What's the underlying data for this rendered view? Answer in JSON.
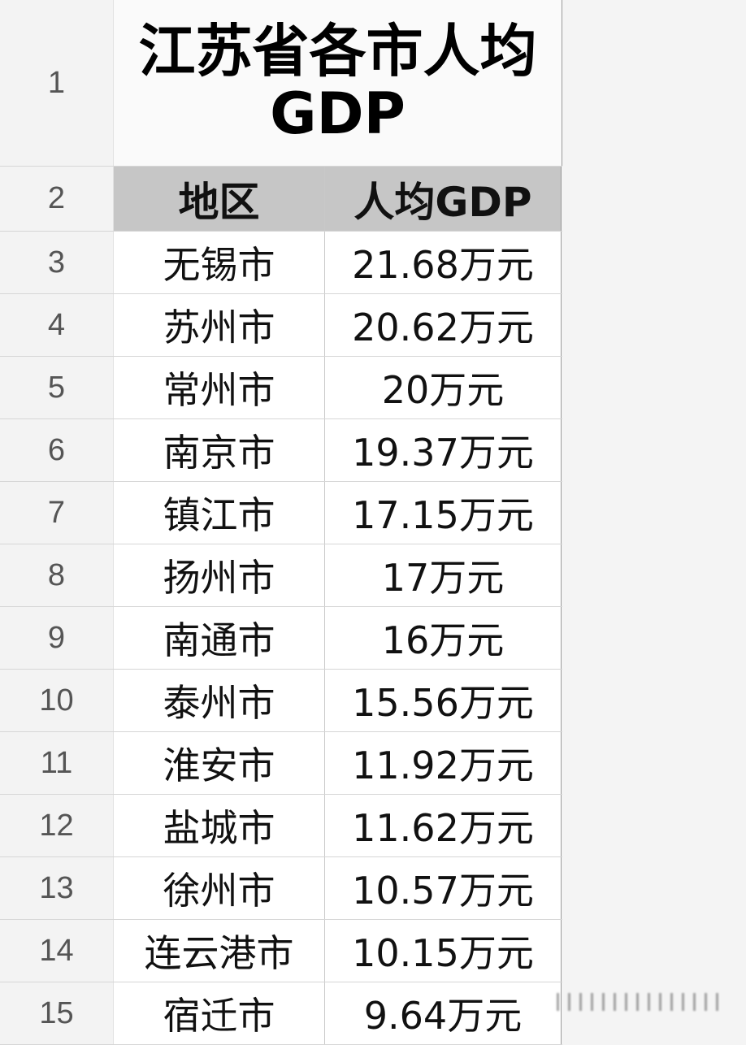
{
  "title": "江苏省各市人均GDP",
  "row_numbers": [
    "1",
    "2",
    "3",
    "4",
    "5",
    "6",
    "7",
    "8",
    "9",
    "10",
    "11",
    "12",
    "13",
    "14",
    "15"
  ],
  "headers": {
    "region": "地区",
    "gdp": "人均GDP"
  },
  "rows": [
    {
      "city": "无锡市",
      "gdp": "21.68万元"
    },
    {
      "city": "苏州市",
      "gdp": "20.62万元"
    },
    {
      "city": "常州市",
      "gdp": "20万元"
    },
    {
      "city": "南京市",
      "gdp": "19.37万元"
    },
    {
      "city": "镇江市",
      "gdp": "17.15万元"
    },
    {
      "city": "扬州市",
      "gdp": "17万元"
    },
    {
      "city": "南通市",
      "gdp": "16万元"
    },
    {
      "city": "泰州市",
      "gdp": "15.56万元"
    },
    {
      "city": "淮安市",
      "gdp": "11.92万元"
    },
    {
      "city": "盐城市",
      "gdp": "11.62万元"
    },
    {
      "city": "徐州市",
      "gdp": "10.57万元"
    },
    {
      "city": "连云港市",
      "gdp": "10.15万元"
    },
    {
      "city": "宿迁市",
      "gdp": "9.64万元"
    }
  ],
  "colors": {
    "header_fill": "#c6c6c6",
    "cell_fill": "#ffffff",
    "background": "#f4f4f4"
  }
}
